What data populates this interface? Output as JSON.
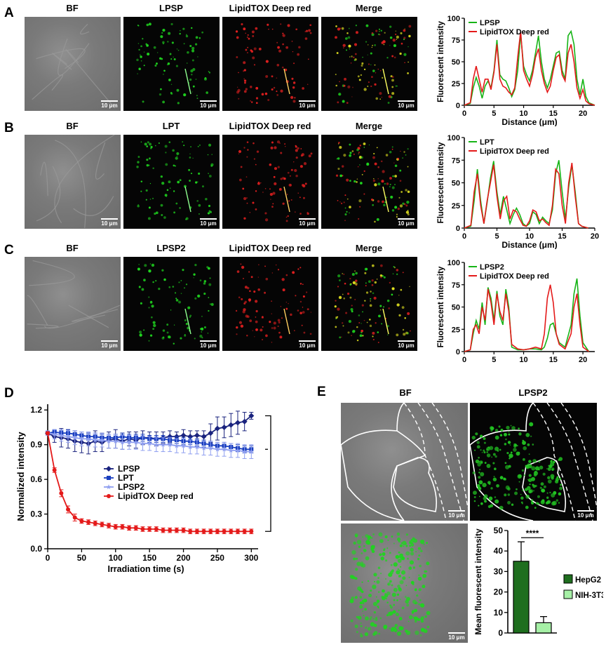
{
  "panels": [
    {
      "letter": "A",
      "titles": [
        "BF",
        "LPSP",
        "LipidTOX Deep red",
        "Merge"
      ]
    },
    {
      "letter": "B",
      "titles": [
        "BF",
        "LPT",
        "LipidTOX Deep red",
        "Merge"
      ]
    },
    {
      "letter": "C",
      "titles": [
        "BF",
        "LPSP2",
        "LipidTOX Deep red",
        "Merge"
      ]
    }
  ],
  "scale_label": "10 μm",
  "panel_d_letter": "D",
  "panel_e_letter": "E",
  "panel_e_titles": {
    "bf": "BF",
    "probe": "LPSP2"
  },
  "colors": {
    "green": "#16b416",
    "red": "#e41a1a",
    "navy": "#1a237e",
    "blue": "#1a3fbf",
    "lightblue": "#8f9ff0",
    "darkgreen": "#1e6e1e",
    "lightgreen": "#a6f0a6"
  },
  "chart_data": [
    {
      "type": "line",
      "panel": "A",
      "xlabel": "Distance (μm)",
      "ylabel": "Fluorescent intensity",
      "xlim": [
        0,
        22
      ],
      "ylim": [
        0,
        100
      ],
      "xticks": [
        0,
        5,
        10,
        15,
        20
      ],
      "yticks": [
        0,
        25,
        50,
        75,
        100
      ],
      "series": [
        {
          "name": "LPSP",
          "color": "#16b416",
          "x": [
            0,
            1,
            1.5,
            2,
            2.5,
            3,
            3.5,
            4,
            4.5,
            5,
            5.5,
            6,
            6.5,
            7,
            7.5,
            8,
            8.5,
            9,
            9.5,
            10,
            10.5,
            11,
            11.5,
            12,
            12.5,
            13,
            13.5,
            14,
            14.5,
            15,
            15.5,
            16,
            16.5,
            17,
            17.5,
            18,
            18.5,
            19,
            19.5,
            20,
            20.5,
            21,
            22
          ],
          "y": [
            0,
            2,
            20,
            32,
            22,
            8,
            22,
            28,
            20,
            40,
            75,
            35,
            30,
            28,
            20,
            10,
            18,
            40,
            82,
            45,
            35,
            28,
            40,
            60,
            80,
            50,
            30,
            20,
            30,
            45,
            60,
            62,
            40,
            30,
            80,
            85,
            70,
            30,
            12,
            30,
            10,
            3,
            0
          ]
        },
        {
          "name": "LipidTOX Deep red",
          "color": "#e41a1a",
          "x": [
            0,
            1,
            1.5,
            2,
            2.5,
            3,
            3.5,
            4,
            4.5,
            5,
            5.5,
            6,
            6.5,
            7,
            7.5,
            8,
            8.5,
            9,
            9.5,
            10,
            10.5,
            11,
            11.5,
            12,
            12.5,
            13,
            13.5,
            14,
            14.5,
            15,
            15.5,
            16,
            16.5,
            17,
            17.5,
            18,
            18.5,
            19,
            19.5,
            20,
            20.5,
            21,
            22
          ],
          "y": [
            0,
            3,
            30,
            45,
            30,
            15,
            30,
            30,
            18,
            38,
            70,
            30,
            22,
            20,
            15,
            12,
            20,
            55,
            85,
            40,
            30,
            22,
            35,
            55,
            65,
            40,
            25,
            15,
            22,
            40,
            55,
            58,
            35,
            28,
            60,
            70,
            50,
            20,
            8,
            18,
            5,
            2,
            0
          ]
        }
      ],
      "legend": "top-left"
    },
    {
      "type": "line",
      "panel": "B",
      "xlabel": "Distance (μm)",
      "ylabel": "Fluorescent intensity",
      "xlim": [
        0,
        20
      ],
      "ylim": [
        0,
        100
      ],
      "xticks": [
        0,
        5,
        10,
        15,
        20
      ],
      "yticks": [
        0,
        25,
        50,
        75,
        100
      ],
      "series": [
        {
          "name": "LPT",
          "color": "#16b416",
          "x": [
            0,
            1,
            1.5,
            2,
            2.5,
            3,
            3.5,
            4,
            4.5,
            5,
            5.5,
            6,
            6.5,
            7,
            7.5,
            8,
            8.5,
            9,
            9.5,
            10,
            10.5,
            11,
            11.5,
            12,
            12.5,
            13,
            13.5,
            14,
            14.5,
            15,
            15.5,
            16,
            16.5,
            17,
            17.5,
            18,
            19
          ],
          "y": [
            0,
            2,
            30,
            65,
            30,
            5,
            28,
            55,
            74,
            40,
            15,
            35,
            20,
            5,
            15,
            22,
            15,
            5,
            2,
            5,
            18,
            15,
            5,
            12,
            8,
            5,
            20,
            60,
            75,
            40,
            10,
            45,
            70,
            40,
            5,
            2,
            0
          ]
        },
        {
          "name": "LipidTOX Deep red",
          "color": "#e41a1a",
          "x": [
            0,
            1,
            1.5,
            2,
            2.5,
            3,
            3.5,
            4,
            4.5,
            5,
            5.5,
            6,
            6.5,
            7,
            7.5,
            8,
            8.5,
            9,
            9.5,
            10,
            10.5,
            11,
            11.5,
            12,
            12.5,
            13,
            13.5,
            14,
            14.5,
            15,
            15.5,
            16,
            16.5,
            17,
            17.5,
            18,
            19
          ],
          "y": [
            0,
            3,
            40,
            60,
            25,
            5,
            30,
            50,
            70,
            35,
            10,
            30,
            35,
            10,
            20,
            18,
            10,
            3,
            2,
            8,
            20,
            18,
            8,
            10,
            6,
            3,
            25,
            65,
            60,
            25,
            5,
            50,
            72,
            35,
            5,
            2,
            0
          ]
        }
      ],
      "legend": "top-left"
    },
    {
      "type": "line",
      "panel": "C",
      "xlabel": "",
      "ylabel": "Fluorescent intensity",
      "xlim": [
        0,
        22
      ],
      "ylim": [
        0,
        100
      ],
      "xticks": [
        0,
        5,
        10,
        15,
        20
      ],
      "yticks": [
        0,
        25,
        50,
        75,
        100
      ],
      "series": [
        {
          "name": "LPSP2",
          "color": "#16b416",
          "x": [
            0,
            1,
            1.5,
            2,
            2.5,
            3,
            3.5,
            4,
            4.5,
            5,
            5.5,
            6,
            6.5,
            7,
            7.5,
            8,
            9,
            10,
            11,
            12,
            13,
            13.5,
            14,
            14.5,
            15,
            15.5,
            16,
            17,
            18,
            18.5,
            19,
            19.5,
            20,
            21
          ],
          "y": [
            0,
            2,
            20,
            35,
            25,
            55,
            30,
            72,
            60,
            35,
            68,
            40,
            30,
            70,
            50,
            5,
            2,
            2,
            3,
            3,
            2,
            5,
            15,
            30,
            32,
            20,
            10,
            5,
            30,
            65,
            82,
            40,
            10,
            0
          ]
        },
        {
          "name": "LipidTOX Deep red",
          "color": "#e41a1a",
          "x": [
            0,
            1,
            1.5,
            2,
            2.5,
            3,
            3.5,
            4,
            4.5,
            5,
            5.5,
            6,
            6.5,
            7,
            7.5,
            8,
            9,
            10,
            11,
            12,
            13,
            13.5,
            14,
            14.5,
            15,
            15.5,
            16,
            17,
            18,
            18.5,
            19,
            19.5,
            20,
            21
          ],
          "y": [
            0,
            2,
            25,
            30,
            20,
            50,
            35,
            70,
            55,
            30,
            65,
            45,
            35,
            65,
            45,
            8,
            3,
            2,
            3,
            5,
            3,
            20,
            60,
            75,
            55,
            20,
            8,
            3,
            20,
            50,
            65,
            30,
            5,
            0
          ]
        }
      ],
      "legend": "top-left"
    },
    {
      "type": "line",
      "panel": "D",
      "xlabel": "Irradiation time (s)",
      "ylabel": "Normalized intensity",
      "xlim": [
        0,
        310
      ],
      "ylim": [
        0.0,
        1.25
      ],
      "xticks": [
        0,
        50,
        100,
        150,
        200,
        250,
        300
      ],
      "yticks": [
        0.0,
        0.3,
        0.6,
        0.9,
        1.2
      ],
      "yticklabels": [
        "0.0",
        "0.3",
        "0.6",
        "0.9",
        "1.2"
      ],
      "significance": "***",
      "series": [
        {
          "name": "LPSP",
          "color": "#1a237e",
          "marker": "diamond",
          "x": [
            0,
            10,
            20,
            30,
            40,
            50,
            60,
            70,
            80,
            90,
            100,
            110,
            120,
            130,
            140,
            150,
            160,
            170,
            180,
            190,
            200,
            210,
            220,
            230,
            240,
            250,
            260,
            270,
            280,
            290,
            300
          ],
          "y": [
            1.0,
            0.97,
            0.96,
            0.95,
            0.93,
            0.92,
            0.91,
            0.93,
            0.92,
            0.94,
            0.95,
            0.93,
            0.95,
            0.94,
            0.96,
            0.96,
            0.95,
            0.96,
            0.97,
            0.97,
            0.98,
            0.97,
            0.98,
            0.97,
            1.0,
            1.04,
            1.05,
            1.07,
            1.09,
            1.1,
            1.15
          ],
          "err": [
            0.01,
            0.05,
            0.08,
            0.08,
            0.09,
            0.09,
            0.09,
            0.09,
            0.08,
            0.07,
            0.08,
            0.07,
            0.06,
            0.07,
            0.06,
            0.05,
            0.06,
            0.05,
            0.05,
            0.04,
            0.05,
            0.05,
            0.04,
            0.05,
            0.08,
            0.1,
            0.09,
            0.1,
            0.1,
            0.08,
            0.03
          ]
        },
        {
          "name": "LPT",
          "color": "#1a3fbf",
          "marker": "square",
          "x": [
            0,
            10,
            20,
            30,
            40,
            50,
            60,
            70,
            80,
            90,
            100,
            110,
            120,
            130,
            140,
            150,
            160,
            170,
            180,
            190,
            200,
            210,
            220,
            230,
            240,
            250,
            260,
            270,
            280,
            290,
            300
          ],
          "y": [
            1.0,
            1.01,
            1.0,
            1.0,
            0.99,
            0.98,
            0.97,
            0.97,
            0.96,
            0.96,
            0.96,
            0.97,
            0.96,
            0.96,
            0.96,
            0.95,
            0.95,
            0.95,
            0.94,
            0.94,
            0.93,
            0.93,
            0.92,
            0.91,
            0.9,
            0.89,
            0.89,
            0.88,
            0.87,
            0.86,
            0.86
          ],
          "err": [
            0.01,
            0.02,
            0.02,
            0.03,
            0.03,
            0.03,
            0.03,
            0.03,
            0.03,
            0.03,
            0.03,
            0.03,
            0.03,
            0.03,
            0.03,
            0.03,
            0.03,
            0.03,
            0.03,
            0.03,
            0.03,
            0.03,
            0.03,
            0.03,
            0.03,
            0.03,
            0.03,
            0.03,
            0.03,
            0.03,
            0.03
          ]
        },
        {
          "name": "LPSP2",
          "color": "#8f9ff0",
          "marker": "star",
          "x": [
            0,
            10,
            20,
            30,
            40,
            50,
            60,
            70,
            80,
            90,
            100,
            110,
            120,
            130,
            140,
            150,
            160,
            170,
            180,
            190,
            200,
            210,
            220,
            230,
            240,
            250,
            260,
            270,
            280,
            290,
            300
          ],
          "y": [
            1.0,
            0.99,
            0.98,
            0.97,
            0.96,
            0.95,
            0.95,
            0.94,
            0.94,
            0.93,
            0.93,
            0.92,
            0.92,
            0.92,
            0.91,
            0.91,
            0.9,
            0.9,
            0.9,
            0.89,
            0.89,
            0.88,
            0.88,
            0.87,
            0.87,
            0.86,
            0.86,
            0.85,
            0.85,
            0.84,
            0.84
          ],
          "err": [
            0.02,
            0.04,
            0.05,
            0.05,
            0.06,
            0.06,
            0.06,
            0.06,
            0.06,
            0.06,
            0.06,
            0.06,
            0.06,
            0.06,
            0.06,
            0.06,
            0.06,
            0.06,
            0.06,
            0.06,
            0.06,
            0.06,
            0.06,
            0.06,
            0.06,
            0.06,
            0.06,
            0.06,
            0.06,
            0.06,
            0.06
          ]
        },
        {
          "name": "LipidTOX Deep red",
          "color": "#e41a1a",
          "marker": "circle",
          "x": [
            0,
            10,
            20,
            30,
            40,
            50,
            60,
            70,
            80,
            90,
            100,
            110,
            120,
            130,
            140,
            150,
            160,
            170,
            180,
            190,
            200,
            210,
            220,
            230,
            240,
            250,
            260,
            270,
            280,
            290,
            300
          ],
          "y": [
            1.0,
            0.68,
            0.48,
            0.34,
            0.27,
            0.24,
            0.23,
            0.22,
            0.21,
            0.2,
            0.19,
            0.19,
            0.18,
            0.18,
            0.17,
            0.17,
            0.17,
            0.16,
            0.16,
            0.16,
            0.16,
            0.15,
            0.15,
            0.15,
            0.15,
            0.15,
            0.15,
            0.15,
            0.15,
            0.15,
            0.15
          ],
          "err": [
            0.01,
            0.02,
            0.03,
            0.03,
            0.03,
            0.02,
            0.02,
            0.02,
            0.02,
            0.02,
            0.02,
            0.02,
            0.02,
            0.02,
            0.02,
            0.02,
            0.02,
            0.02,
            0.02,
            0.02,
            0.02,
            0.02,
            0.02,
            0.02,
            0.02,
            0.02,
            0.02,
            0.02,
            0.02,
            0.02,
            0.02
          ]
        }
      ],
      "legend": "center"
    },
    {
      "type": "bar",
      "panel": "E",
      "categories": [
        "HepG2",
        "NIH-3T3"
      ],
      "values": [
        35,
        5
      ],
      "errors": [
        9.5,
        3
      ],
      "colors": [
        "#1e6e1e",
        "#a6f0a6"
      ],
      "ylabel": "Mean fluorescent intensity",
      "ylim": [
        0,
        50
      ],
      "yticks": [
        0,
        10,
        20,
        30,
        40,
        50
      ],
      "significance": "****",
      "legend": "right"
    }
  ]
}
